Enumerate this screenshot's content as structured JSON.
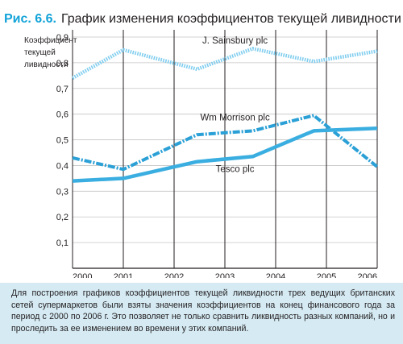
{
  "figure": {
    "number": "Рис. 6.6.",
    "title": "График изменения коэффициентов текущей ливидности"
  },
  "caption": "Для построения графиков коэффициентов текущей ликвидности трех ведущих британских сетей супермаркетов были взяты значения коэффициентов на конец финансового года за период с 2000 по 2006 г. Это позволяет не только сравнить ликвидность разных компаний, но и проследить за ее изменением во времени у этих компаний.",
  "colors": {
    "accent": "#12a3d8",
    "line_solid": "#3aaee0",
    "line_dashdot": "#2aa0d6",
    "line_dotted": "#7fcdef",
    "caption_bg": "#d5eaf3",
    "grid": "#c4c4c4"
  },
  "chart_data": {
    "type": "line",
    "ylabel": "Коэффициент\nтекущей\nливидности",
    "xlabel": "",
    "x": [
      2000,
      2001,
      2002,
      2003,
      2004,
      2005,
      2006
    ],
    "x_tick_labels": [
      "2000",
      "2001",
      "2002",
      "2003",
      "2004",
      "2005",
      "2006"
    ],
    "ylim": [
      0,
      0.9
    ],
    "y_ticks": [
      0.1,
      0.2,
      0.3,
      0.4,
      0.5,
      0.6,
      0.7,
      0.8,
      0.9
    ],
    "y_tick_labels": [
      "0,1",
      "0,2",
      "0,3",
      "0,4",
      "0,5",
      "0,6",
      "0,7",
      "0,8",
      "0,9"
    ],
    "grid": "horizontal",
    "series": [
      {
        "name": "J. Sainsbury plc",
        "style": "dotted",
        "points": [
          [
            2000,
            0.74
          ],
          [
            2001,
            0.85
          ],
          [
            2002.45,
            0.775
          ],
          [
            2003.55,
            0.855
          ],
          [
            2004.75,
            0.805
          ],
          [
            2006,
            0.845
          ]
        ]
      },
      {
        "name": "Wm Morrison plc",
        "style": "dashdot",
        "points": [
          [
            2000,
            0.43
          ],
          [
            2001,
            0.385
          ],
          [
            2002.45,
            0.52
          ],
          [
            2003.55,
            0.535
          ],
          [
            2004.75,
            0.595
          ],
          [
            2006,
            0.395
          ]
        ]
      },
      {
        "name": "Tesco plc",
        "style": "solid",
        "points": [
          [
            2000,
            0.34
          ],
          [
            2001,
            0.35
          ],
          [
            2002.45,
            0.415
          ],
          [
            2003.55,
            0.435
          ],
          [
            2004.75,
            0.535
          ],
          [
            2006,
            0.545
          ]
        ]
      }
    ]
  }
}
